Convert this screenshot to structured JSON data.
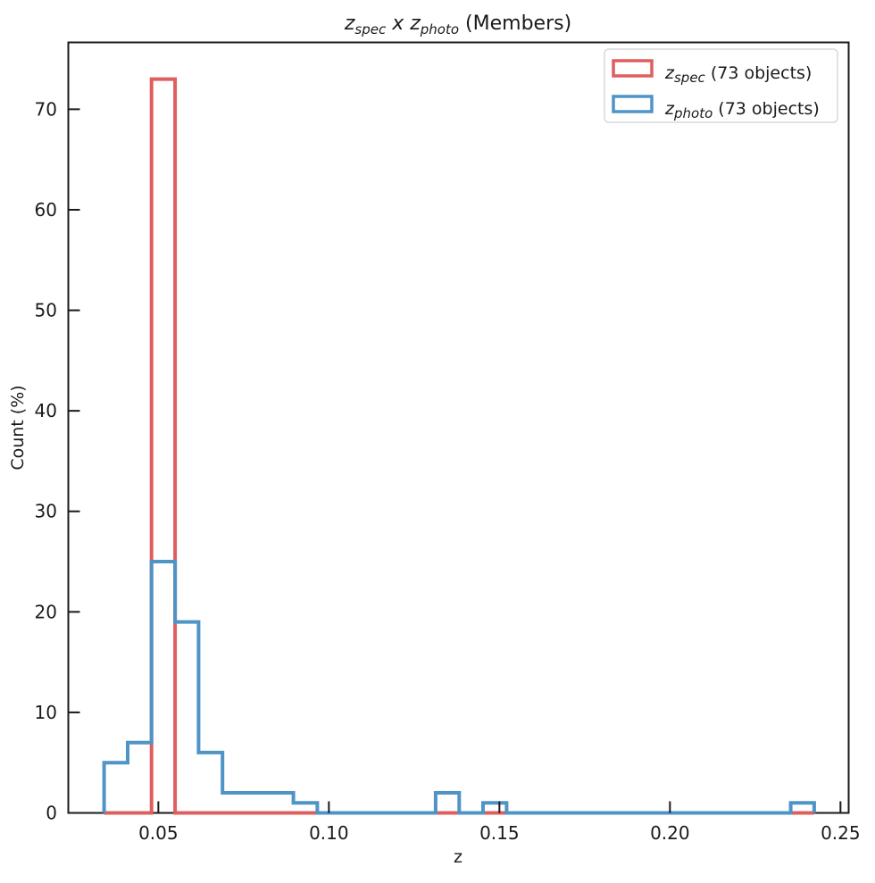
{
  "figure": {
    "background": "#ffffff",
    "title": {
      "full": "z_spec x z_photo (Members)",
      "z1": "z",
      "sub1": "spec",
      "mid": " x ",
      "z2": "z",
      "sub2": "photo",
      "suffix": " (Members)"
    },
    "axes": {
      "xlabel": "z",
      "ylabel": "Count (%)",
      "xlim": [
        0.0236,
        0.2524
      ],
      "ylim": [
        0,
        76.65
      ],
      "xticks": [
        0.05,
        0.1,
        0.15,
        0.2,
        0.25
      ],
      "xtick_labels": [
        "0.05",
        "0.10",
        "0.15",
        "0.20",
        "0.25"
      ],
      "yticks": [
        0,
        10,
        20,
        30,
        40,
        50,
        60,
        70
      ],
      "ytick_labels": [
        "0",
        "10",
        "20",
        "30",
        "40",
        "50",
        "60",
        "70"
      ],
      "frame_color": "#1a1a1a",
      "tick_direction": "in"
    },
    "legend": {
      "border_color": "#d9d9d9",
      "background": "#ffffff",
      "entries": [
        {
          "z": "z",
          "sub": "spec",
          "rest": " (73 objects)",
          "color": "#df5e5e"
        },
        {
          "z": "z",
          "sub": "photo",
          "rest": " (73 objects)",
          "color": "#4f94c6"
        }
      ]
    }
  },
  "chart_data": {
    "type": "bar",
    "subtype": "step-histogram",
    "title": "z_spec x z_photo (Members)",
    "xlabel": "z",
    "ylabel": "Count (%)",
    "xlim": [
      0.0236,
      0.2524
    ],
    "ylim": [
      0,
      76.65
    ],
    "grid": false,
    "legend_position": "upper right",
    "bin_edges": [
      0.0341,
      0.041,
      0.048,
      0.0549,
      0.0618,
      0.0688,
      0.0757,
      0.0827,
      0.0896,
      0.0966,
      0.1035,
      0.1104,
      0.1174,
      0.1243,
      0.1313,
      0.1382,
      0.1452,
      0.1521,
      0.159,
      0.166,
      0.1729,
      0.1799,
      0.1868,
      0.1937,
      0.2007,
      0.2076,
      0.2146,
      0.2215,
      0.2284,
      0.2354,
      0.2423
    ],
    "series": [
      {
        "name": "z_spec (73 objects)",
        "color": "#df5e5e",
        "total_objects": 73,
        "counts": [
          0,
          0,
          73,
          0,
          0,
          0,
          0,
          0,
          0,
          0,
          0,
          0,
          0,
          0,
          0,
          0,
          0,
          0,
          0,
          0,
          0,
          0,
          0,
          0,
          0,
          0,
          0,
          0,
          0,
          0
        ]
      },
      {
        "name": "z_photo (73 objects)",
        "color": "#4f94c6",
        "total_objects": 73,
        "counts": [
          5,
          7,
          25,
          19,
          6,
          2,
          2,
          2,
          1,
          0,
          0,
          0,
          0,
          0,
          2,
          0,
          1,
          0,
          0,
          0,
          0,
          0,
          0,
          0,
          0,
          0,
          0,
          0,
          0,
          1
        ]
      }
    ]
  }
}
